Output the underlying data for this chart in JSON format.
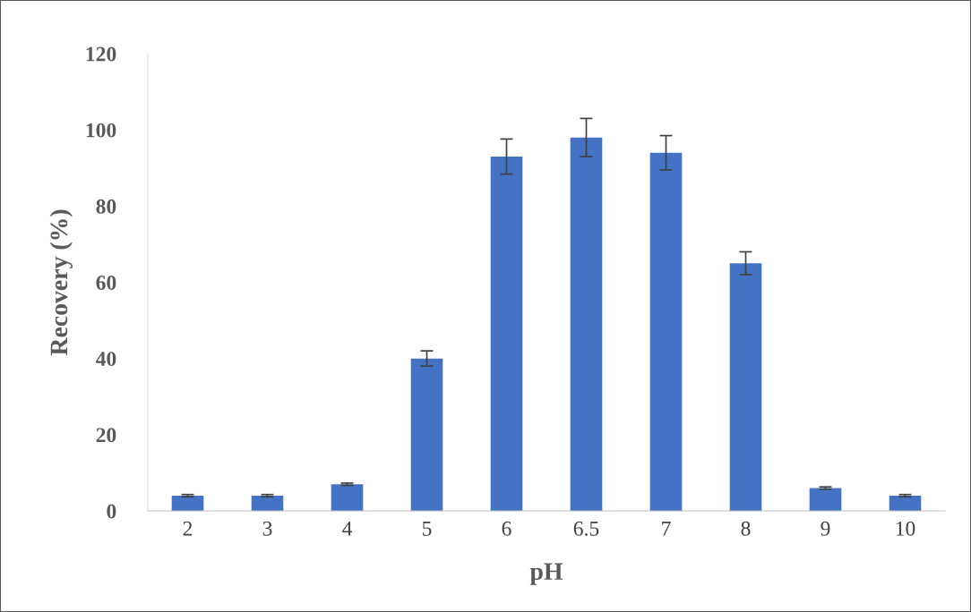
{
  "chart_data": {
    "type": "bar",
    "xlabel": "pH",
    "ylabel": "Recovery (%)",
    "categories": [
      "2",
      "3",
      "4",
      "5",
      "6",
      "6.5",
      "7",
      "8",
      "9",
      "10"
    ],
    "values": [
      4,
      4,
      7,
      40,
      93,
      98,
      94,
      65,
      6,
      4
    ],
    "errors": [
      0.3,
      0.3,
      0.3,
      2,
      4.6,
      5,
      4.5,
      3,
      0.3,
      0.3
    ],
    "color": "#4472c4",
    "ylim": [
      0,
      120
    ],
    "yticks": [
      0,
      20,
      40,
      60,
      80,
      100,
      120
    ],
    "grid": false,
    "legend": false
  }
}
